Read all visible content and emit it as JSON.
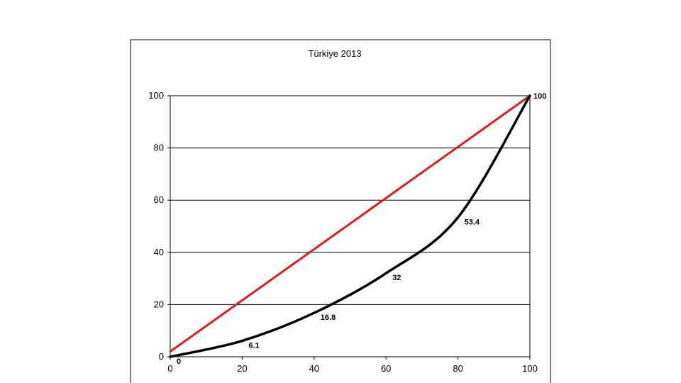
{
  "chart_data": {
    "type": "line",
    "title": "Türkiye 2013",
    "xlabel": "",
    "ylabel": "",
    "xlim": [
      0,
      100
    ],
    "ylim": [
      0,
      100
    ],
    "x_ticks": [
      "0",
      "20",
      "40",
      "60",
      "80",
      "100"
    ],
    "y_ticks": [
      "0",
      "20",
      "40",
      "60",
      "80",
      "100"
    ],
    "grid": "horizontal",
    "legend": "none",
    "series": [
      {
        "color": "#d42020",
        "x": [
          0,
          100
        ],
        "y": [
          2,
          100
        ]
      },
      {
        "color": "#000000",
        "x": [
          0,
          20,
          40,
          60,
          80,
          100
        ],
        "y": [
          0,
          6.1,
          16.8,
          32,
          53.4,
          100
        ],
        "point_labels": [
          "0",
          "6.1",
          "16.8",
          "32",
          "53.4",
          "100"
        ]
      }
    ]
  }
}
